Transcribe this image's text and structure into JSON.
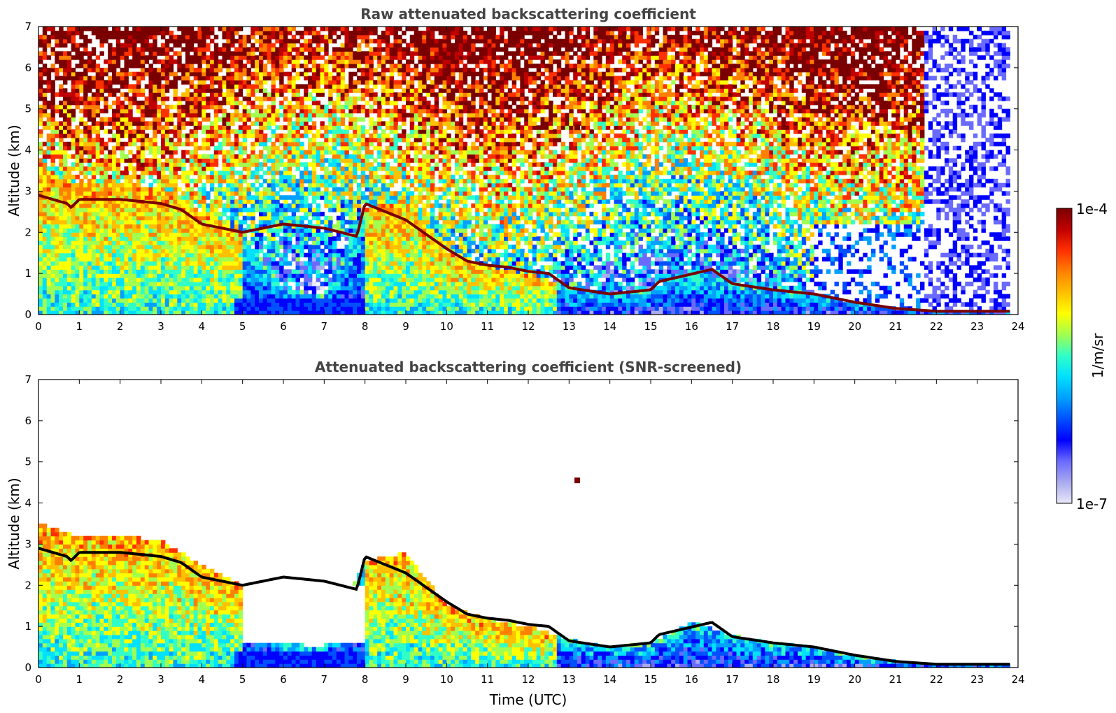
{
  "colors": {
    "colormap": [
      "#e8e8f8",
      "#aaaaf0",
      "#6a6aff",
      "#0000ff",
      "#0050ff",
      "#00a0ff",
      "#00e0ff",
      "#30ffc8",
      "#a0ff50",
      "#ffff00",
      "#ffc000",
      "#ff8000",
      "#ff3000",
      "#c00000",
      "#7a0000"
    ],
    "layer_top": "#7a0000",
    "layer_bottom": "#000000",
    "frame": "#000000",
    "title": "#444444"
  },
  "chart_data": [
    {
      "type": "heatmap",
      "title": "Raw attenuated backscattering coefficient",
      "xlabel": "",
      "ylabel": "Altitude (km)",
      "xlim": [
        0,
        24
      ],
      "ylim": [
        0,
        7
      ],
      "x_ticks": [
        "0",
        "1",
        "2",
        "3",
        "4",
        "5",
        "6",
        "7",
        "8",
        "9",
        "10",
        "11",
        "12",
        "13",
        "14",
        "15",
        "16",
        "17",
        "18",
        "19",
        "20",
        "21",
        "22",
        "23",
        "24"
      ],
      "y_ticks": [
        "0",
        "1",
        "2",
        "3",
        "4",
        "5",
        "6",
        "7"
      ],
      "layer_height_km": {
        "x": [
          0,
          0.7,
          0.8,
          1.0,
          2.0,
          3.0,
          3.5,
          4.0,
          5.0,
          6.0,
          7.0,
          7.8,
          8.0,
          9.0,
          10.0,
          10.5,
          11.0,
          11.5,
          12.0,
          12.5,
          13.0,
          14.0,
          15.0,
          15.2,
          16.5,
          17.0,
          18.0,
          19.0,
          20.0,
          21.0,
          22.0,
          23.0,
          23.8
        ],
        "y": [
          2.9,
          2.7,
          2.6,
          2.8,
          2.8,
          2.7,
          2.55,
          2.2,
          2.0,
          2.2,
          2.1,
          1.9,
          2.7,
          2.3,
          1.6,
          1.3,
          1.2,
          1.15,
          1.05,
          1.0,
          0.65,
          0.5,
          0.6,
          0.8,
          1.1,
          0.75,
          0.6,
          0.5,
          0.3,
          0.15,
          0.08,
          0.08,
          0.08
        ]
      },
      "signal_top_km": {
        "x": [
          0,
          1,
          2,
          3,
          4,
          5,
          6,
          7,
          8,
          9,
          10,
          11,
          12,
          13,
          14,
          15,
          16,
          17,
          18,
          19,
          20,
          21,
          22,
          23,
          24
        ],
        "y": [
          3.5,
          3.2,
          3.2,
          3.1,
          2.5,
          2.0,
          0.6,
          0.5,
          2.6,
          2.8,
          1.5,
          1.2,
          1.0,
          0.7,
          0.5,
          0.6,
          1.1,
          0.8,
          0.6,
          0.5,
          0.3,
          0.15,
          0.15,
          0.15,
          0.15
        ]
      },
      "elevated_features": [
        {
          "x": 13.2,
          "y": 4.55
        }
      ]
    },
    {
      "type": "heatmap",
      "title": "Attenuated backscattering coefficient (SNR-screened)",
      "xlabel": "Time (UTC)",
      "ylabel": "Altitude (km)",
      "xlim": [
        0,
        24
      ],
      "ylim": [
        0,
        7
      ],
      "x_ticks": [
        "0",
        "1",
        "2",
        "3",
        "4",
        "5",
        "6",
        "7",
        "8",
        "9",
        "10",
        "11",
        "12",
        "13",
        "14",
        "15",
        "16",
        "17",
        "18",
        "19",
        "20",
        "21",
        "22",
        "23",
        "24"
      ],
      "y_ticks": [
        "0",
        "1",
        "2",
        "3",
        "4",
        "5",
        "6",
        "7"
      ],
      "screened_gap": {
        "x_start": 5.0,
        "x_end": 8.0,
        "y_bottom": 0.5,
        "y_top": 2.0
      }
    }
  ],
  "colorbar": {
    "max_label": "1e-4",
    "min_label": "1e-7",
    "unit_label": "1/m/sr",
    "range": [
      1e-07,
      0.0001
    ],
    "scale": "log"
  }
}
